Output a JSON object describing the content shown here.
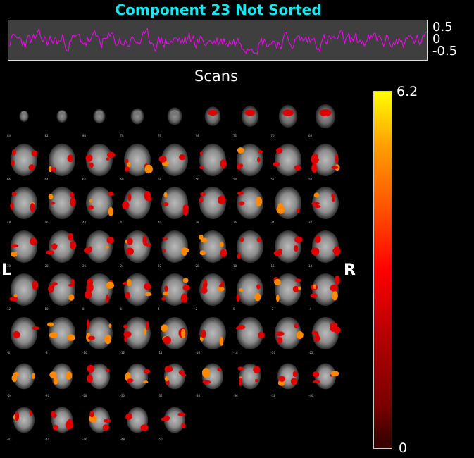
{
  "title": "Component 23 Not Sorted",
  "timecourse": {
    "ticks": [
      "0.5",
      "0",
      "-0.5"
    ],
    "line_color": "#ff00ff"
  },
  "montage": {
    "label": "Scans",
    "left_label": "L",
    "right_label": "R",
    "rows": [
      [
        "84",
        "82",
        "80",
        "78",
        "76",
        "74",
        "72",
        "70",
        "68"
      ],
      [
        "66",
        "64",
        "62",
        "60",
        "58",
        "56",
        "54",
        "52",
        "50"
      ],
      [
        "48",
        "46",
        "44",
        "42",
        "40",
        "38",
        "36",
        "34",
        "32"
      ],
      [
        "30",
        "28",
        "26",
        "24",
        "22",
        "20",
        "18",
        "16",
        "14"
      ],
      [
        "12",
        "10",
        "8",
        "6",
        "4",
        "2",
        "0",
        "-2",
        "-4"
      ],
      [
        "-6",
        "-8",
        "-10",
        "-12",
        "-14",
        "-16",
        "-18",
        "-20",
        "-22"
      ],
      [
        "-24",
        "-26",
        "-28",
        "-30",
        "-32",
        "-34",
        "-36",
        "-38",
        "-40"
      ],
      [
        "-42",
        "-44",
        "-46",
        "-48",
        "-50"
      ]
    ]
  },
  "colorbar": {
    "max": "6.2",
    "min": "0",
    "colors": [
      "#3a0000",
      "#ff0000",
      "#ffa000",
      "#ffff00"
    ]
  }
}
